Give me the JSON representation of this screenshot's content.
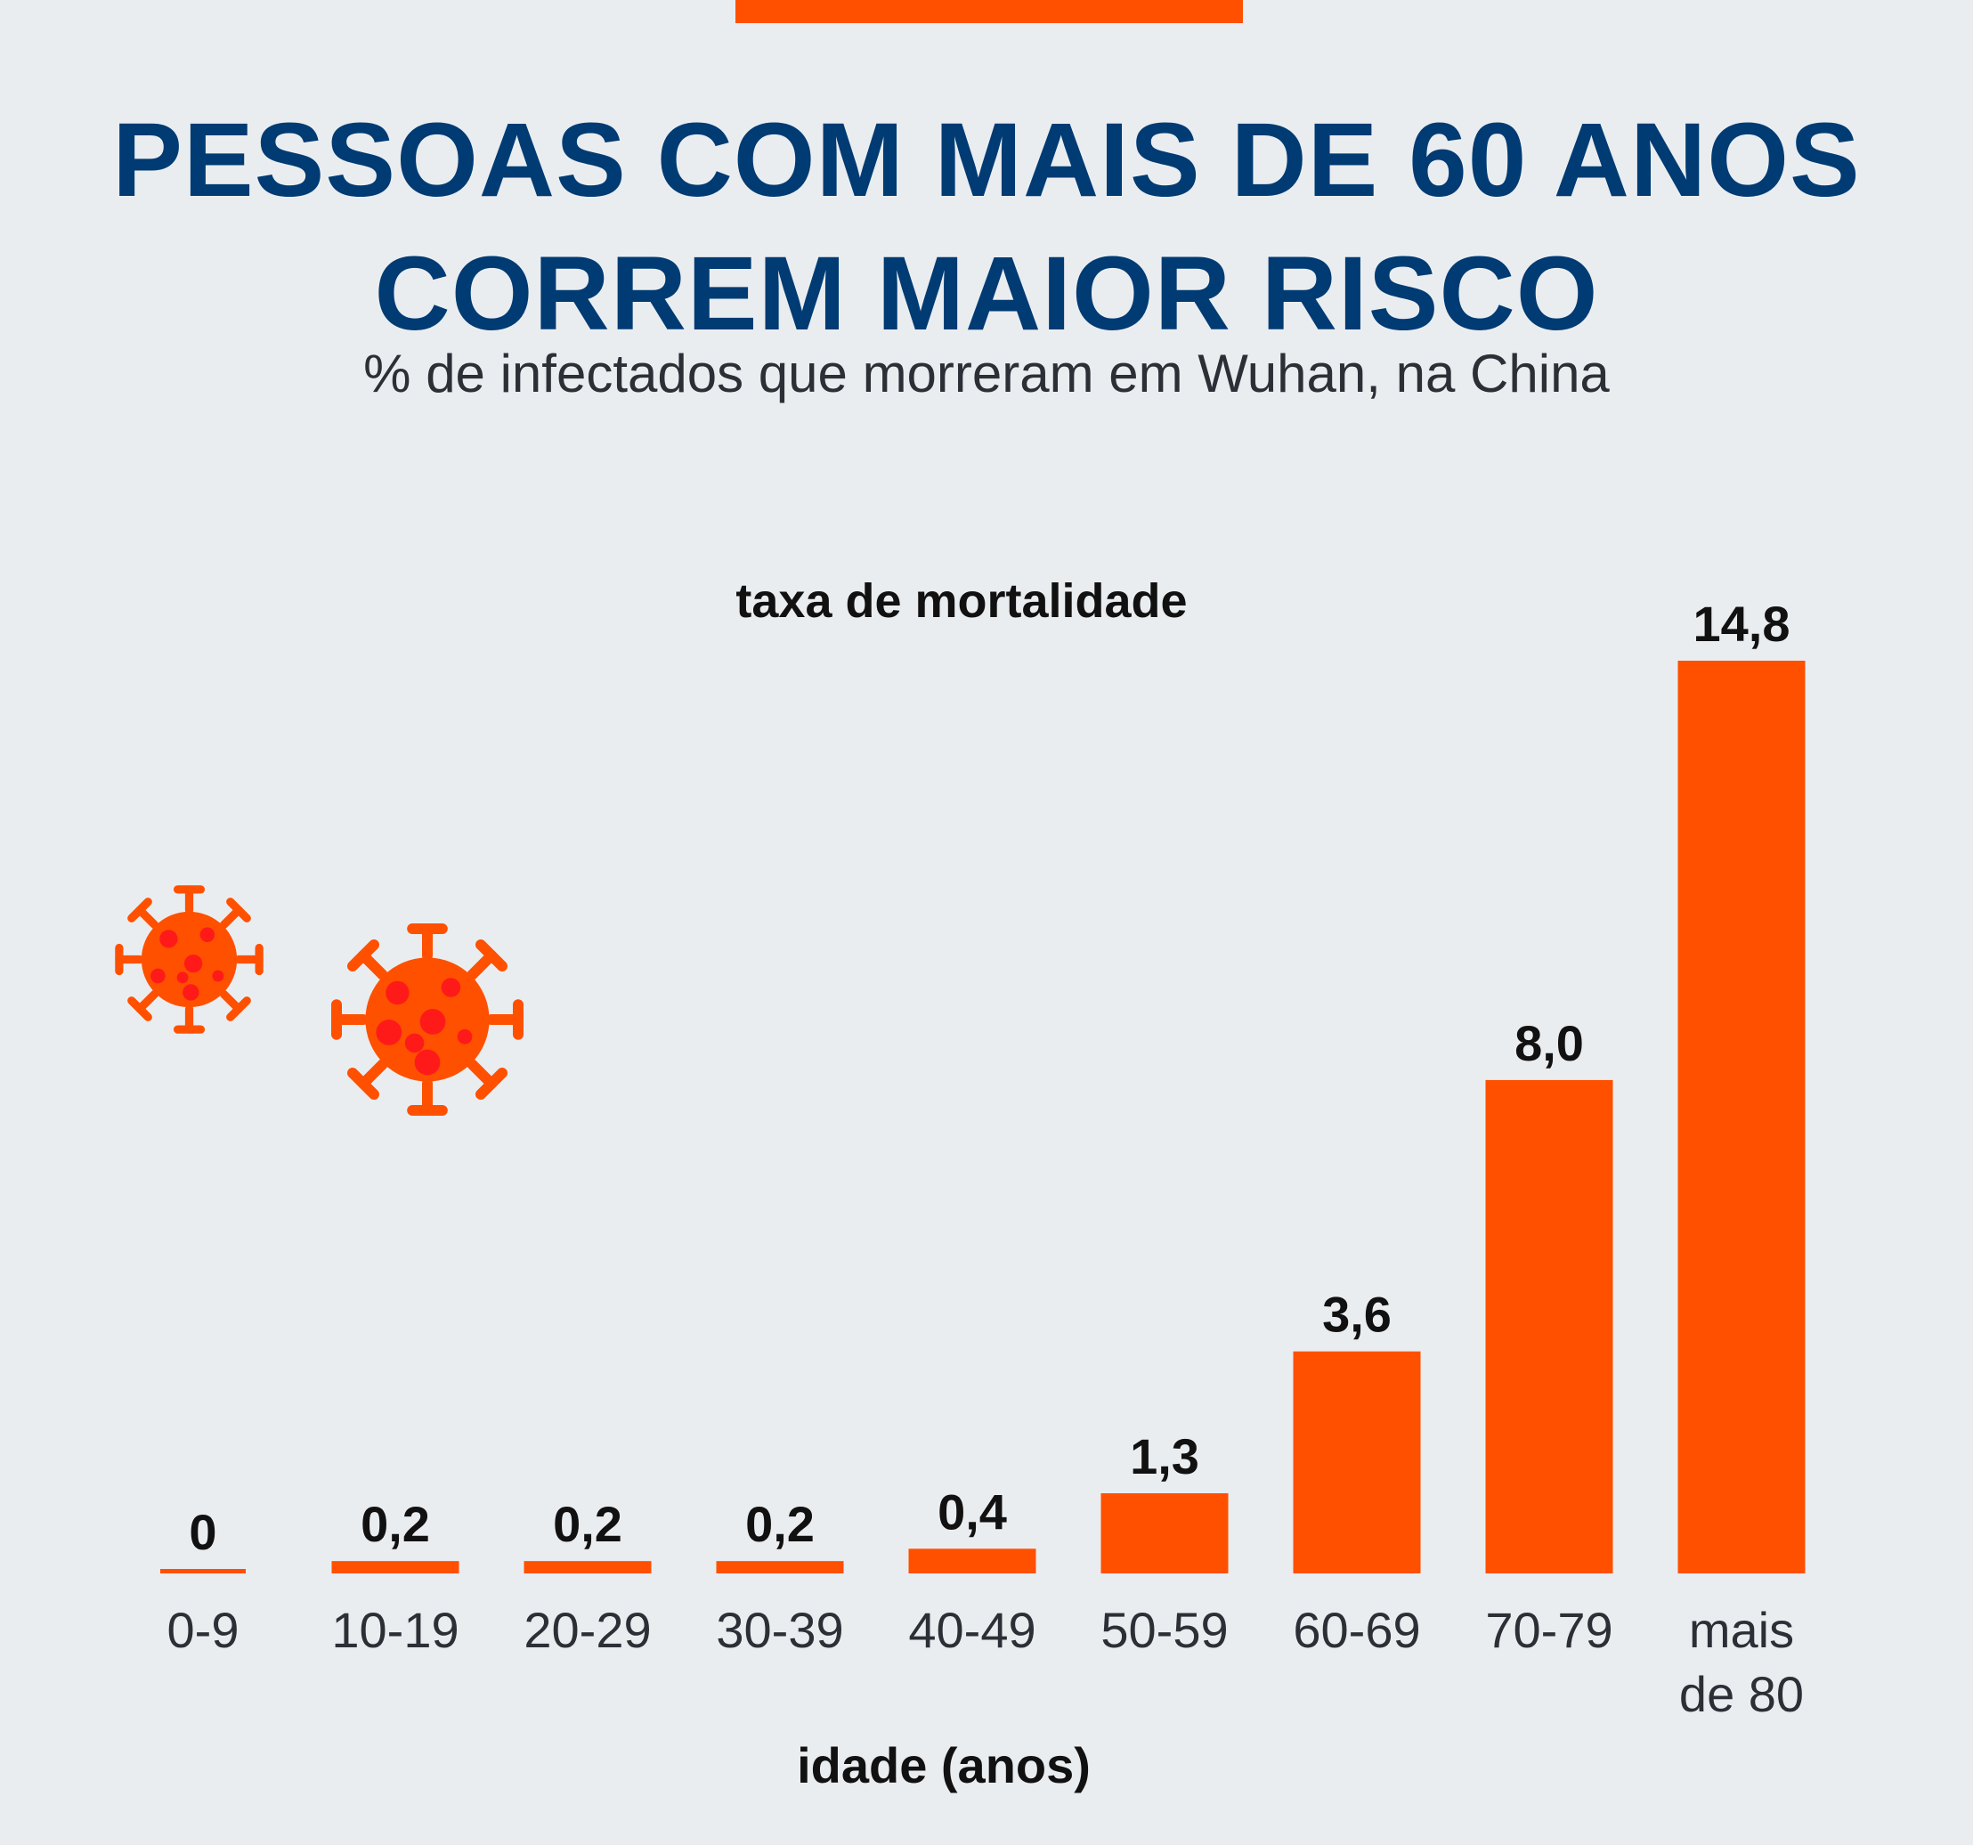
{
  "header": {
    "title_line1": "PESSOAS COM MAIS DE 60 ANOS",
    "title_line2": "CORREM MAIOR RISCO",
    "subtitle": "% de infectados que morreram em Wuhan, na China"
  },
  "icons": [
    "virus-icon",
    "virus-icon"
  ],
  "colors": {
    "bar": "#ff5000",
    "title": "#003b73",
    "virus": "#ff5000",
    "virus_spots": "#ff1a1a"
  },
  "chart_data": {
    "type": "bar",
    "title": "PESSOAS COM MAIS DE 60 ANOS CORREM MAIOR RISCO",
    "subtitle": "% de infectados que morreram em Wuhan, na China",
    "ylabel": "taxa de mortalidade",
    "xlabel": "idade (anos)",
    "categories": [
      [
        "0-9"
      ],
      [
        "10-19"
      ],
      [
        "20-29"
      ],
      [
        "30-39"
      ],
      [
        "40-49"
      ],
      [
        "50-59"
      ],
      [
        "60-69"
      ],
      [
        "70-79"
      ],
      [
        "mais",
        "de 80"
      ]
    ],
    "values": [
      0,
      0.2,
      0.2,
      0.2,
      0.4,
      1.3,
      3.6,
      8.0,
      14.8
    ],
    "value_labels": [
      "0",
      "0,2",
      "0,2",
      "0,2",
      "0,4",
      "1,3",
      "3,6",
      "8,0",
      "14,8"
    ],
    "ylim": [
      0,
      14.8
    ],
    "grid": false,
    "legend": "none"
  }
}
